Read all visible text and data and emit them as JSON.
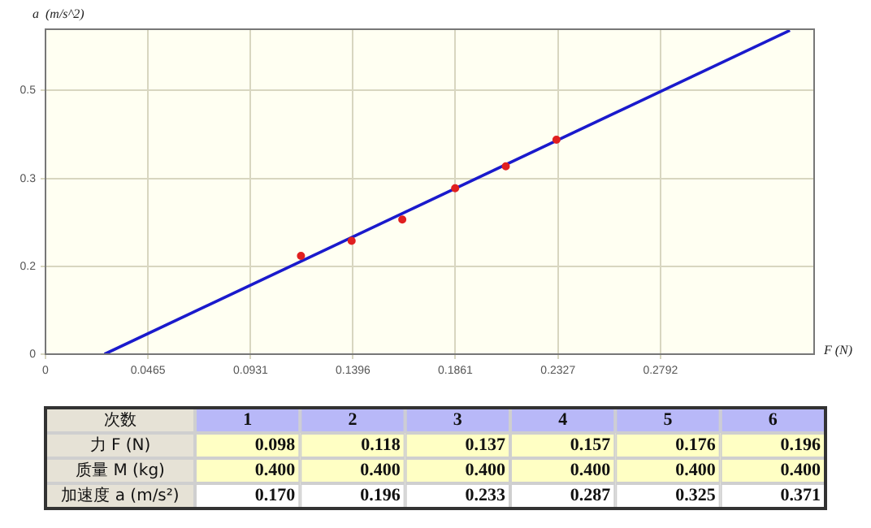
{
  "chart_data": [
    {
      "type": "scatter",
      "xlabel": "F (N)",
      "ylabel": "a  (m/s^2)",
      "series": [
        {
          "type": "scatter",
          "color": "#e02020",
          "x": [
            0.116,
            0.139,
            0.162,
            0.186,
            0.209,
            0.232
          ],
          "values": [
            0.17,
            0.196,
            0.233,
            0.287,
            0.325,
            0.371
          ]
        },
        {
          "type": "line",
          "color": "#1a1acc",
          "marker": "none",
          "x": [
            0.0268,
            0.338
          ],
          "values": [
            0,
            0.56
          ]
        }
      ],
      "xlim": [
        0,
        0.349
      ],
      "xticks": [
        0,
        0.0465,
        0.0931,
        0.1396,
        0.1861,
        0.2327,
        0.2792
      ],
      "ylim": [
        0,
        0.562
      ],
      "yticks": [
        0,
        {
          "value": 0.152,
          "label": "0.2"
        },
        {
          "value": 0.304,
          "label": "0.3"
        },
        {
          "value": 0.456,
          "label": "0.5"
        }
      ],
      "grid": true,
      "marker": "circle"
    },
    {
      "type": "heatmap",
      "xlabel": "次数",
      "categories": [
        "1",
        "2",
        "3",
        "4",
        "5",
        "6"
      ],
      "y_categories": [
        "力 F (N)",
        "质量 M (kg)",
        "加速度 a (m/s²)"
      ],
      "cells": [
        [
          0.098,
          0.118,
          0.137,
          0.157,
          0.176,
          0.196
        ],
        [
          0.4,
          0.4,
          0.4,
          0.4,
          0.4,
          0.4
        ],
        [
          0.17,
          0.196,
          0.233,
          0.287,
          0.325,
          0.371
        ]
      ],
      "cell_labels": [
        [
          "0.098",
          "0.118",
          "0.137",
          "0.157",
          "0.176",
          "0.196"
        ],
        [
          "0.400",
          "0.400",
          "0.400",
          "0.400",
          "0.400",
          "0.400"
        ],
        [
          "0.170",
          "0.196",
          "0.233",
          "0.287",
          "0.325",
          "0.371"
        ]
      ]
    }
  ]
}
